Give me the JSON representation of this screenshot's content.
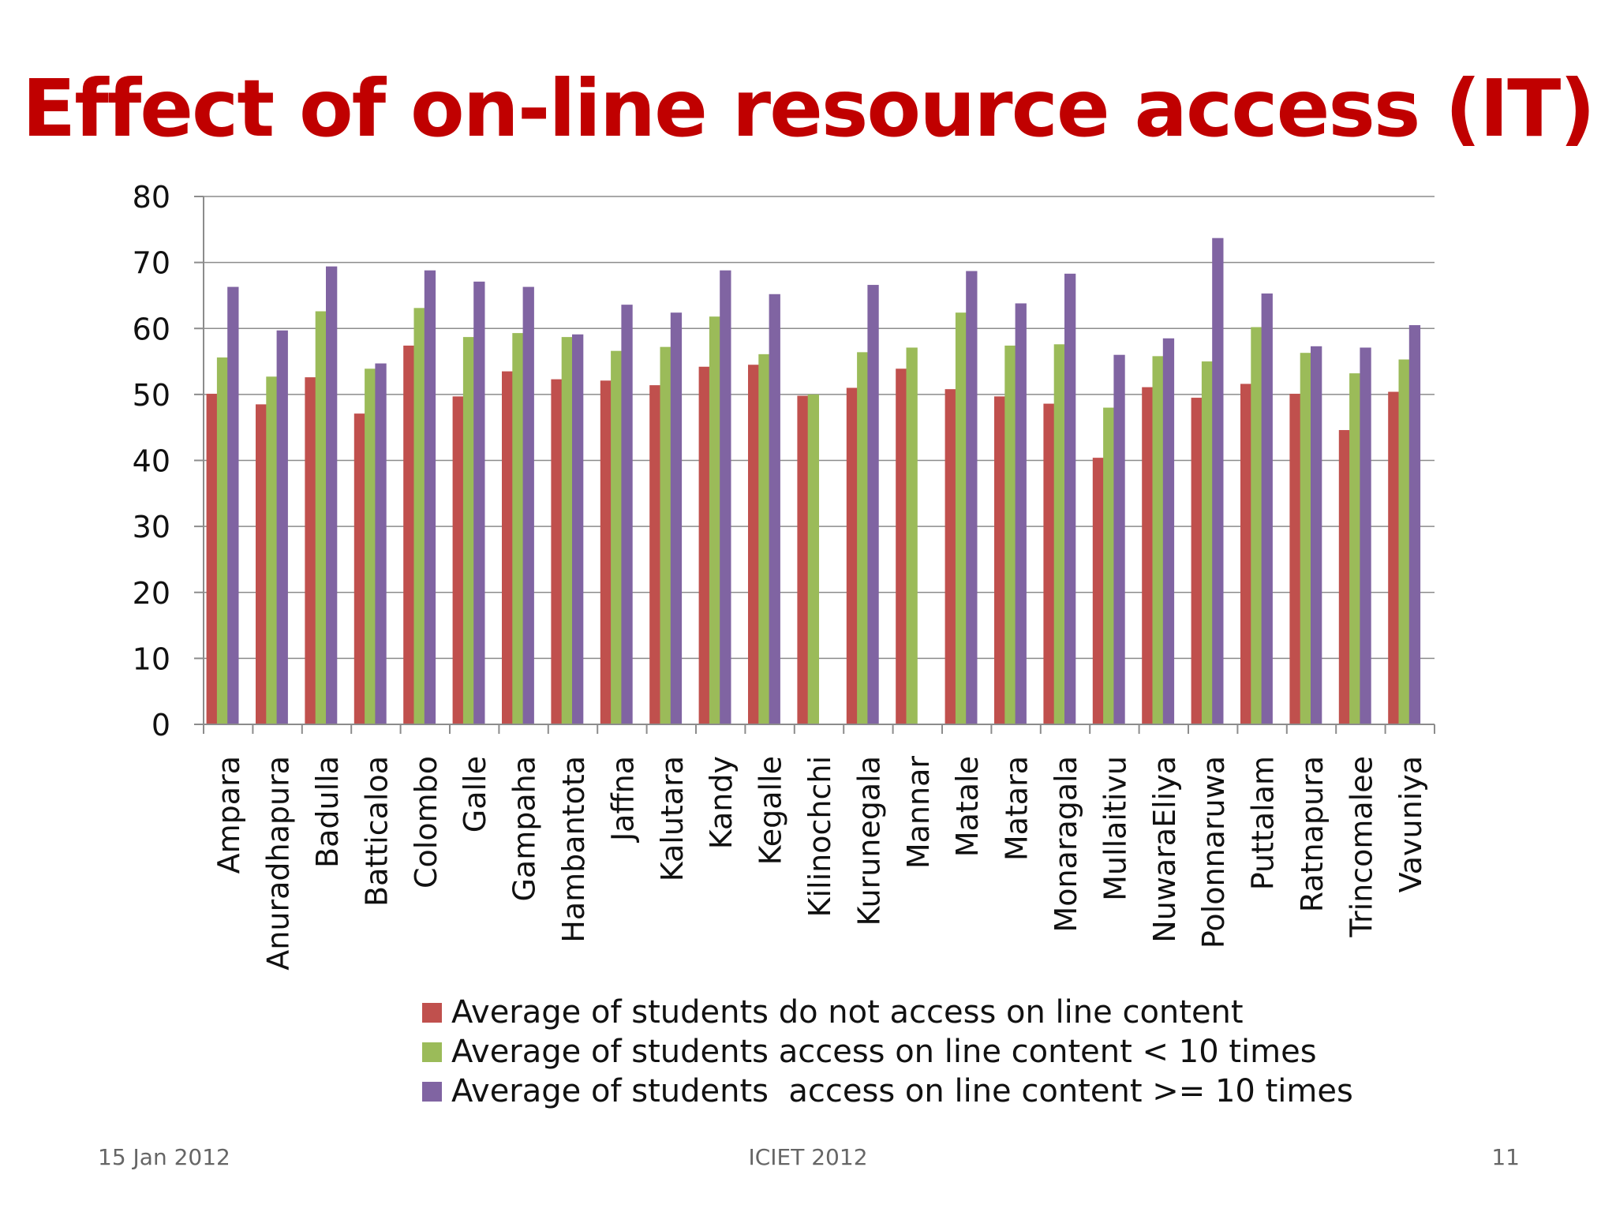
{
  "slide": {
    "title": "Effect of on-line resource access (IT)",
    "title_color": "#c00000",
    "footer_left": "15 Jan 2012",
    "footer_center": "ICIET 2012",
    "footer_right": "11"
  },
  "chart_data": {
    "type": "bar",
    "title": "",
    "xlabel": "",
    "ylabel": "",
    "ylim": [
      0,
      80
    ],
    "yticks": [
      0,
      10,
      20,
      30,
      40,
      50,
      60,
      70,
      80
    ],
    "grid": true,
    "legend_position": "bottom",
    "categories": [
      "Ampara",
      "Anuradhapura",
      "Badulla",
      "Batticaloa",
      "Colombo",
      "Galle",
      "Gampaha",
      "Hambantota",
      "Jaffna",
      "Kalutara",
      "Kandy",
      "Kegalle",
      "Kilinochchi",
      "Kurunegala",
      "Mannar",
      "Matale",
      "Matara",
      "Monaragala",
      "Mullaitivu",
      "NuwaraEliya",
      "Polonnaruwa",
      "Puttalam",
      "Ratnapura",
      "Trincomalee",
      "Vavuniya"
    ],
    "series": [
      {
        "name": "Average of students do not access on line content",
        "color": "#c0504d",
        "values": [
          50.1,
          48.5,
          52.6,
          47.1,
          57.4,
          49.7,
          53.5,
          52.3,
          52.1,
          51.4,
          54.2,
          54.5,
          49.8,
          51.0,
          53.9,
          50.8,
          49.7,
          48.6,
          40.4,
          51.1,
          49.5,
          51.6,
          50.1,
          44.6,
          50.4
        ]
      },
      {
        "name": "Average of students access on line content < 10 times",
        "color": "#9bbb59",
        "values": [
          55.6,
          52.7,
          62.6,
          53.9,
          63.1,
          58.7,
          59.3,
          58.7,
          56.6,
          57.2,
          61.8,
          56.1,
          50.0,
          56.4,
          57.1,
          62.4,
          57.4,
          57.6,
          48.0,
          55.8,
          55.0,
          60.2,
          56.3,
          53.2,
          55.3
        ]
      },
      {
        "name": "Average of students  access on line content >= 10 times",
        "color": "#8064a2",
        "values": [
          66.3,
          59.7,
          69.4,
          54.7,
          68.8,
          67.1,
          66.3,
          59.1,
          63.6,
          62.4,
          68.8,
          65.2,
          null,
          66.6,
          null,
          68.7,
          63.8,
          68.3,
          56.0,
          58.5,
          73.7,
          65.3,
          57.3,
          57.1,
          60.5
        ]
      }
    ]
  }
}
